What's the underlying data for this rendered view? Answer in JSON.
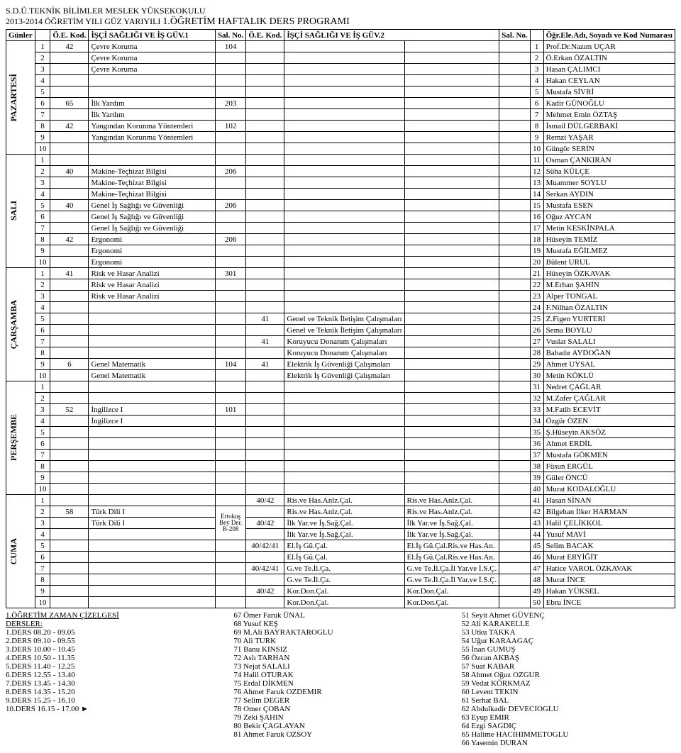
{
  "title1": "S.D.Ü.TEKNİK BİLİMLER MESLEK YÜKSEKOKULU",
  "title2_a": "2013-2014 ÖĞRETİM YILI GÜZ YARIYILI ",
  "title2_b": "1.ÖĞRETİM HAFTALIK DERS PROGRAMI",
  "headers": {
    "days": "Günler",
    "oekod": "Ö.E. Kod.",
    "course1": "İŞÇİ SAĞLIĞI VE İŞ GÜV.1",
    "salno": "Sal. No.",
    "course2": "İŞÇİ SAĞLIĞI VE İŞ GÜV.2",
    "staff": "Öğr.Ele.Adı, Soyadı ve Kod Numarası"
  },
  "days": [
    "PAZARTESİ",
    "SALI",
    "ÇARŞAMBA",
    "PERŞEMBE",
    "CUMA"
  ],
  "salnote": {
    "a": "Ertokuş",
    "b": "Bey Der.",
    "c": "B-208"
  },
  "rows": [
    [
      "1",
      "42",
      "Çevre Koruma",
      "104",
      "",
      "",
      "",
      "",
      "1",
      "Prof.Dr.Nazım UÇAR"
    ],
    [
      "2",
      "",
      "Çevre Koruma",
      "",
      "",
      "",
      "",
      "",
      "2",
      "Ö.Erkan ÖZALTIN"
    ],
    [
      "3",
      "",
      "Çevre Koruma",
      "",
      "",
      "",
      "",
      "",
      "3",
      "Hasan ÇALIMCI"
    ],
    [
      "4",
      "",
      "",
      "",
      "",
      "",
      "",
      "",
      "4",
      "Hakan CEYLAN"
    ],
    [
      "5",
      "",
      "",
      "",
      "",
      "",
      "",
      "",
      "5",
      "Mustafa SİVRİ"
    ],
    [
      "6",
      "65",
      "İlk Yardım",
      "203",
      "",
      "",
      "",
      "",
      "6",
      "Kadir GÜNOĞLU"
    ],
    [
      "7",
      "",
      "İlk Yardım",
      "",
      "",
      "",
      "",
      "",
      "7",
      "Mehmet Emin ÖZTAŞ"
    ],
    [
      "8",
      "42",
      "Yangından Korunma Yöntemleri",
      "102",
      "",
      "",
      "",
      "",
      "8",
      "İsmail DÜLGERBAKİ"
    ],
    [
      "9",
      "",
      "Yangından Korunma Yöntemleri",
      "",
      "",
      "",
      "",
      "",
      "9",
      "Remzi YAŞAR"
    ],
    [
      "10",
      "",
      "",
      "",
      "",
      "",
      "",
      "",
      "10",
      "Güngör SERİN"
    ],
    [
      "1",
      "",
      "",
      "",
      "",
      "",
      "",
      "",
      "11",
      "Osman ÇANKIRAN"
    ],
    [
      "2",
      "40",
      "Makine-Teçhizat Bilgisi",
      "206",
      "",
      "",
      "",
      "",
      "12",
      "Süha KÜLÇE"
    ],
    [
      "3",
      "",
      "Makine-Teçhizat Bilgisi",
      "",
      "",
      "",
      "",
      "",
      "13",
      "Muammer SOYLU"
    ],
    [
      "4",
      "",
      "Makine-Teçhizat Bilgisi",
      "",
      "",
      "",
      "",
      "",
      "14",
      "Serkan AYDIN"
    ],
    [
      "5",
      "40",
      "Genel İş Sağlığı ve Güvenliği",
      "206",
      "",
      "",
      "",
      "",
      "15",
      "Mustafa ESEN"
    ],
    [
      "6",
      "",
      "Genel İş Sağlığı ve Güvenliği",
      "",
      "",
      "",
      "",
      "",
      "16",
      "Oğuz AYCAN"
    ],
    [
      "7",
      "",
      "Genel İş Sağlığı ve Güvenliği",
      "",
      "",
      "",
      "",
      "",
      "17",
      "Metin KESKİNPALA"
    ],
    [
      "8",
      "42",
      "Ergonomi",
      "206",
      "",
      "",
      "",
      "",
      "18",
      "Hüseyin TEMİZ"
    ],
    [
      "9",
      "",
      "Ergonomi",
      "",
      "",
      "",
      "",
      "",
      "19",
      "Mustafa EĞİLMEZ"
    ],
    [
      "10",
      "",
      "Ergonomi",
      "",
      "",
      "",
      "",
      "",
      "20",
      "Bülent URUL"
    ],
    [
      "1",
      "41",
      "Risk ve Hasar Analizi",
      "301",
      "",
      "",
      "",
      "",
      "21",
      "Hüseyin ÖZKAVAK"
    ],
    [
      "2",
      "",
      "Risk ve Hasar Analizi",
      "",
      "",
      "",
      "",
      "",
      "22",
      "M.Erhan ŞAHİN"
    ],
    [
      "3",
      "",
      "Risk ve Hasar Analizi",
      "",
      "",
      "",
      "",
      "",
      "23",
      "Alper TONGAL"
    ],
    [
      "4",
      "",
      "",
      "",
      "",
      "",
      "",
      "",
      "24",
      "F.Nilhan ÖZALTIN"
    ],
    [
      "5",
      "",
      "",
      "",
      "41",
      "Genel ve Teknik İletişim Çalışmaları",
      "",
      "",
      "25",
      "Z.Figen YURTERİ"
    ],
    [
      "6",
      "",
      "",
      "",
      "",
      "Genel ve Teknik İletişim Çalışmaları",
      "",
      "",
      "26",
      "Sema BOYLU"
    ],
    [
      "7",
      "",
      "",
      "",
      "41",
      "Koruyucu Donanım Çalışmaları",
      "",
      "",
      "27",
      "Vuslat SALALI"
    ],
    [
      "8",
      "",
      "",
      "",
      "",
      "Koruyucu Donanım Çalışmaları",
      "",
      "",
      "28",
      "Bahadır AYDOĞAN"
    ],
    [
      "9",
      "6",
      "Genel Matematik",
      "104",
      "41",
      "Elektrik İş Güvenliği Çalışmaları",
      "",
      "",
      "29",
      "Ahmet UYSAL"
    ],
    [
      "10",
      "",
      "Genel Matematik",
      "",
      "",
      "Elektrik İş Güvenliği Çalışmaları",
      "",
      "",
      "30",
      "Metin KÖKLÜ"
    ],
    [
      "1",
      "",
      "",
      "",
      "",
      "",
      "",
      "",
      "31",
      "Nedret ÇAĞLAR"
    ],
    [
      "2",
      "",
      "",
      "",
      "",
      "",
      "",
      "",
      "32",
      "M.Zafer ÇAĞLAR"
    ],
    [
      "3",
      "52",
      "İngilizce I",
      "101",
      "",
      "",
      "",
      "",
      "33",
      "M.Fatih ECEVİT"
    ],
    [
      "4",
      "",
      "İngilizce I",
      "",
      "",
      "",
      "",
      "",
      "34",
      "Özgür ÖZEN"
    ],
    [
      "5",
      "",
      "",
      "",
      "",
      "",
      "",
      "",
      "35",
      "Ş.Hüseyin AKSÖZ"
    ],
    [
      "6",
      "",
      "",
      "",
      "",
      "",
      "",
      "",
      "36",
      "Ahmet ERDİL"
    ],
    [
      "7",
      "",
      "",
      "",
      "",
      "",
      "",
      "",
      "37",
      "Mustafa GÖKMEN"
    ],
    [
      "8",
      "",
      "",
      "",
      "",
      "",
      "",
      "",
      "38",
      "Füsun ERGÜL"
    ],
    [
      "9",
      "",
      "",
      "",
      "",
      "",
      "",
      "",
      "39",
      "Güler ÖNCÜ"
    ],
    [
      "10",
      "",
      "",
      "",
      "",
      "",
      "",
      "",
      "40",
      "Murat KODALOĞLU"
    ],
    [
      "1",
      "",
      "",
      "",
      "40/42",
      "Ris.ve Has.Anlz.Çal.",
      "Ris.ve Has.Anlz.Çal.",
      "",
      "41",
      "Hasan SİNAN"
    ],
    [
      "2",
      "58",
      "Türk Dili I",
      "",
      "",
      "Ris.ve Has.Anlz.Çal.",
      "Ris.ve Has.Anlz.Çal.",
      "",
      "42",
      "Bilgehan İlker HARMAN"
    ],
    [
      "3",
      "",
      "Türk Dili I",
      "",
      "40/42",
      "İlk Yar.ve İş.Sağ.Çal.",
      "İlk Yar.ve İş.Sağ.Çal.",
      "",
      "43",
      "Halil ÇELİKKOL"
    ],
    [
      "4",
      "",
      "",
      "",
      "",
      "İlk Yar.ve İş.Sağ.Çal.",
      "İlk Yar.ve İş.Sağ.Çal.",
      "",
      "44",
      "Yusuf MAVİ"
    ],
    [
      "5",
      "",
      "",
      "",
      "40/42/41",
      "El.İş Gü.Çal.",
      "El.İş Gü.Çal.Ris.ve Has.An.",
      "",
      "45",
      "Selim BACAK"
    ],
    [
      "6",
      "",
      "",
      "",
      "",
      "El.İş Gü.Çal.",
      "El.İş Gü.Çal.Ris.ve Has.An.",
      "",
      "46",
      "Murat ERYİĞİT"
    ],
    [
      "7",
      "",
      "",
      "",
      "40/42/41",
      "G.ve Te.İl.Ça.",
      "G.ve Te.İl.Ça.İl Yar.ve İ.S.Ç.",
      "",
      "47",
      "Hatice VAROL ÖZKAVAK"
    ],
    [
      "8",
      "",
      "",
      "",
      "",
      "G.ve Te.İl.Ça.",
      "G.ve Te.İl.Ça.İl Yar.ve İ.S.Ç.",
      "",
      "48",
      "Murat İNCE"
    ],
    [
      "9",
      "",
      "",
      "",
      "40/42",
      "Kor.Don.Çal.",
      "Kor.Don.Çal.",
      "",
      "49",
      "Hakan YÜKSEL"
    ],
    [
      "10",
      "",
      "",
      "",
      "",
      "Kor.Don.Çal.",
      "Kor.Don.Çal.",
      "",
      "50",
      "Ebru İNCE"
    ]
  ],
  "footer_left_heading_a": "1.ÖĞRETİM ZAMAN ÇİZELGESİ",
  "footer_left_heading_b": "DERSLER:",
  "footer_left": [
    "1.DERS         08.20  - 09.05",
    "2.DERS         09.10  - 09.55",
    "3.DERS         10.00  - 10.45",
    "4.DERS         10.50  - 11.35",
    "5.DERS         11.40  - 12.25",
    "6.DERS         12.55  - 13.40",
    "7.DERS         13.45  - 14.30",
    "8.DERS         14.35  - 15.20",
    "9.DERS         15.25  - 16.10",
    "10.DERS       16.15  - 17.00                        ►"
  ],
  "footer_mid": [
    "67   Ömer Faruk ÜNAL",
    "68   Yusuf KEŞ",
    "69   M.Ali BAYRAKTAROGLU",
    "70   Ali TURK",
    "71   Banu KINSIZ",
    "72   Aslı TARHAN",
    "73   Nejat SALALI",
    "74   Halil OTURAK",
    "75   Erdal DİKMEN",
    "76   Ahmet Faruk OZDEMIR",
    "77   Selim DEGER",
    "78   Omer ÇOBAN",
    "79   Zeki ŞAHIN",
    "80   Bekir ÇAGLAYAN",
    "81   Ahmet Faruk OZSOY"
  ],
  "footer_right": [
    "51   Seyit Ahmet GÜVENÇ",
    "52   Ali KARAKELLE",
    "53   Utku TAKKA",
    "54   Uğur KARAAGAÇ",
    "55   İnan GUMUŞ",
    "56   Özcan AKBAŞ",
    "57   Suat KABAR",
    "58   Ahmet Oğuz OZGUR",
    "59   Vedat KÖRKMAZ",
    "60   Levent TEKIN",
    "61   Serhat BAL",
    "62   Abdulkadir DEVECIOGLU",
    "63   Eyup EMIR",
    "64   Ezgi SAGDIÇ",
    "65   Halime HACIHIMMETOGLU",
    "66   Yasemin DURAN"
  ]
}
